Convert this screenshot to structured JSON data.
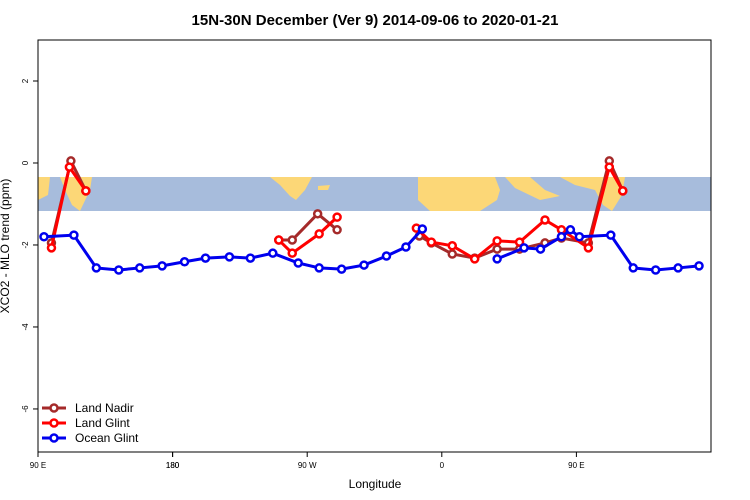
{
  "chart_data": {
    "type": "line",
    "title": "15N-30N December (Ver 9)   2014-09-06 to 2020-01-21",
    "x_label": "Longitude",
    "y_label": "XCO2 - MLO trend (ppm)",
    "xlim": [
      90,
      540
    ],
    "xticks": [
      {
        "value": 90,
        "label": "90 E"
      },
      180,
      {
        "value": 270,
        "label": "90 W"
      },
      {
        "value": 360,
        "label": "0"
      },
      {
        "value": 450,
        "label": "90 E"
      },
      180.0001
    ],
    "ylim": [
      -7.05,
      3.0
    ],
    "yticks": [
      -6,
      -4,
      -2,
      0,
      2
    ],
    "legend": "bottom-left",
    "series": [
      {
        "name": "Land Nadir",
        "color": "#a52a2a",
        "x": [
          99,
          112,
          122,
          186,
          251,
          260,
          277,
          290,
          318,
          345,
          353,
          367,
          382,
          397,
          412,
          429,
          440,
          458,
          472,
          481
        ],
        "values": [
          -1.95,
          0.05,
          -0.68,
          null,
          -1.88,
          -1.88,
          -1.24,
          -1.63,
          null,
          -1.78,
          -1.95,
          -2.22,
          -2.32,
          -2.1,
          -2.1,
          -1.95,
          -1.83,
          -1.95,
          0.05,
          -0.68
        ]
      },
      {
        "name": "Land Glint",
        "color": "#ff0000",
        "x": [
          99,
          111,
          122,
          186,
          251,
          260,
          278,
          290,
          316,
          343,
          353,
          367,
          382,
          397,
          412,
          429,
          440,
          458,
          472,
          481
        ],
        "values": [
          -2.07,
          -0.1,
          -0.68,
          null,
          -1.88,
          -2.2,
          -1.73,
          -1.32,
          null,
          -1.59,
          -1.93,
          -2.02,
          -2.34,
          -1.9,
          -1.93,
          -1.39,
          -1.63,
          -2.07,
          -0.1,
          -0.68
        ]
      },
      {
        "name": "Ocean Glint",
        "color": "#0000ee",
        "x": [
          94,
          114,
          129,
          144,
          158,
          173,
          188,
          202,
          218,
          232,
          247,
          264,
          278,
          293,
          308,
          323,
          336,
          347,
          372,
          397,
          415,
          426,
          440,
          446,
          452,
          473,
          488,
          503,
          518,
          532
        ],
        "values": [
          -1.8,
          -1.76,
          -2.56,
          -2.61,
          -2.56,
          -2.51,
          -2.41,
          -2.32,
          -2.29,
          -2.32,
          -2.2,
          -2.44,
          -2.56,
          -2.59,
          -2.49,
          -2.27,
          -2.05,
          -1.61,
          null,
          -2.34,
          -2.07,
          -2.1,
          -1.8,
          -1.63,
          -1.8,
          -1.76,
          -2.56,
          -2.61,
          -2.56,
          -2.51
        ]
      }
    ]
  }
}
